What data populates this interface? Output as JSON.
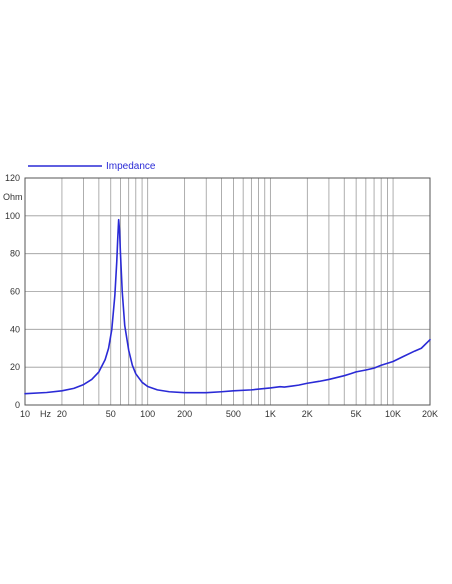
{
  "chart_data": {
    "type": "line",
    "title": "",
    "xlabel": "",
    "ylabel": "",
    "y_unit_label": "Ohm",
    "x_unit_label": "Hz",
    "x_scale": "log",
    "xlim": [
      10,
      20000
    ],
    "ylim": [
      0,
      120
    ],
    "grid": true,
    "legend": "top-left",
    "x_tick_labels": [
      {
        "value": 10,
        "label": "10"
      },
      {
        "value": 20,
        "label": "20"
      },
      {
        "value": 50,
        "label": "50"
      },
      {
        "value": 100,
        "label": "100"
      },
      {
        "value": 200,
        "label": "200"
      },
      {
        "value": 500,
        "label": "500"
      },
      {
        "value": 1000,
        "label": "1K"
      },
      {
        "value": 2000,
        "label": "2K"
      },
      {
        "value": 5000,
        "label": "5K"
      },
      {
        "value": 10000,
        "label": "10K"
      },
      {
        "value": 20000,
        "label": "20K"
      }
    ],
    "y_ticks": [
      0,
      20,
      40,
      60,
      80,
      100,
      120
    ],
    "series": [
      {
        "name": "Impedance",
        "color": "#2a2ad6",
        "x": [
          10,
          15,
          20,
          25,
          30,
          35,
          40,
          45,
          48,
          51,
          54,
          56,
          57,
          58,
          59,
          60,
          62,
          65,
          70,
          75,
          80,
          90,
          100,
          120,
          150,
          200,
          300,
          400,
          500,
          700,
          1000,
          1200,
          1300,
          1500,
          1700,
          2000,
          2500,
          3000,
          4000,
          4500,
          5000,
          6000,
          7000,
          8000,
          10000,
          12000,
          15000,
          17000,
          20000
        ],
        "y": [
          6,
          6.6,
          7.5,
          8.8,
          10.8,
          13.5,
          17.5,
          24,
          30,
          40,
          58,
          76,
          88,
          98,
          92,
          80,
          60,
          42,
          29,
          21,
          16.5,
          12,
          9.8,
          8,
          7,
          6.5,
          6.5,
          7,
          7.5,
          8,
          9,
          9.7,
          9.5,
          10,
          10.5,
          11.5,
          12.5,
          13.5,
          15.5,
          16.5,
          17.5,
          18.5,
          19.5,
          21,
          23,
          25.5,
          28.5,
          30,
          34.5
        ]
      }
    ]
  }
}
